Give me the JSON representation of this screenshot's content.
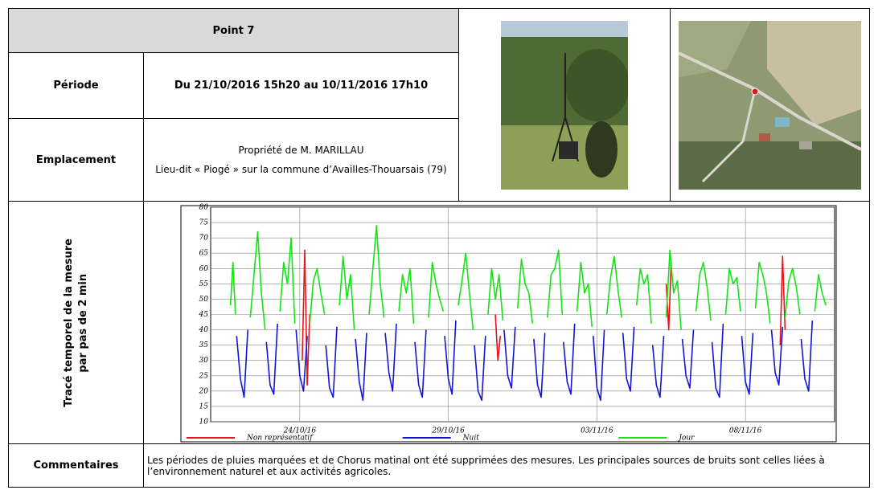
{
  "header": {
    "title": "Point 7"
  },
  "rows": {
    "periode": {
      "label": "Période",
      "value": "Du 21/10/2016 15h20 au 10/11/2016 17h10"
    },
    "emplacement": {
      "label": "Emplacement",
      "lines": [
        "Propriété de M. MARILLAU",
        "Lieu-dit « Piogé » sur la commune d’Availles-Thouarsais (79)"
      ]
    },
    "trace": {
      "label": [
        "Tracé temporel de la mesure",
        "par pas de 2 min"
      ]
    },
    "commentaires": {
      "label": "Commentaires",
      "text": "Les périodes de pluies marquées et de Chorus matinal ont été supprimées des mesures. Les principales sources de bruits sont celles liées à l’environnement naturel et aux activités agricoles."
    }
  },
  "chart_data": {
    "type": "line",
    "xlim": [
      "2016-10-21",
      "2016-11-11"
    ],
    "xticks": [
      {
        "value": "2016-10-24",
        "label": "24/10/16"
      },
      {
        "value": "2016-10-29",
        "label": "29/10/16"
      },
      {
        "value": "2016-11-03",
        "label": "03/11/16"
      },
      {
        "value": "2016-11-08",
        "label": "08/11/16"
      }
    ],
    "ylim": [
      10,
      80
    ],
    "yticks": [
      10,
      15,
      20,
      25,
      30,
      35,
      40,
      45,
      50,
      55,
      60,
      65,
      70,
      75,
      80
    ],
    "grid": true,
    "legend": "bottom",
    "series": [
      {
        "name": "Non représentatif",
        "color": "#e8141c",
        "x": [
          "2016-10-24T02:00",
          "2016-10-24T04:00",
          "2016-10-24T06:00",
          "2016-10-24T08:00",
          "2016-10-24T12:00",
          "2016-10-30T14:00",
          "2016-10-30T16:00",
          "2016-10-30T18:00",
          "2016-10-30T22:00",
          "2016-11-05T08:00",
          "2016-11-05T10:00",
          "2016-11-05T12:00",
          "2016-11-05T16:00",
          "2016-11-09T04:00",
          "2016-11-09T06:00",
          "2016-11-09T08:00"
        ],
        "values": [
          30,
          66,
          22,
          45,
          null,
          45,
          30,
          38,
          null,
          55,
          40,
          62,
          null,
          35,
          64,
          40
        ]
      },
      {
        "name": "Nuit",
        "color": "#1414d4",
        "x": [
          "2016-10-21T21:00",
          "2016-10-22T00:00",
          "2016-10-22T03:00",
          "2016-10-22T06:00",
          "2016-10-22T12:00",
          "2016-10-22T21:00",
          "2016-10-23T00:00",
          "2016-10-23T03:00",
          "2016-10-23T06:00",
          "2016-10-23T12:00",
          "2016-10-23T21:00",
          "2016-10-24T00:00",
          "2016-10-24T03:00",
          "2016-10-24T06:00",
          "2016-10-24T12:00",
          "2016-10-24T21:00",
          "2016-10-25T00:00",
          "2016-10-25T03:00",
          "2016-10-25T06:00",
          "2016-10-25T12:00",
          "2016-10-25T21:00",
          "2016-10-26T00:00",
          "2016-10-26T03:00",
          "2016-10-26T06:00",
          "2016-10-26T12:00",
          "2016-10-26T21:00",
          "2016-10-27T00:00",
          "2016-10-27T03:00",
          "2016-10-27T06:00",
          "2016-10-27T12:00",
          "2016-10-27T21:00",
          "2016-10-28T00:00",
          "2016-10-28T03:00",
          "2016-10-28T06:00",
          "2016-10-28T12:00",
          "2016-10-28T21:00",
          "2016-10-29T00:00",
          "2016-10-29T03:00",
          "2016-10-29T06:00",
          "2016-10-29T12:00",
          "2016-10-29T21:00",
          "2016-10-30T00:00",
          "2016-10-30T03:00",
          "2016-10-30T06:00",
          "2016-10-30T12:00",
          "2016-10-30T21:00",
          "2016-10-31T00:00",
          "2016-10-31T03:00",
          "2016-10-31T06:00",
          "2016-10-31T12:00",
          "2016-10-31T21:00",
          "2016-11-01T00:00",
          "2016-11-01T03:00",
          "2016-11-01T06:00",
          "2016-11-01T12:00",
          "2016-11-01T21:00",
          "2016-11-02T00:00",
          "2016-11-02T03:00",
          "2016-11-02T06:00",
          "2016-11-02T12:00",
          "2016-11-02T21:00",
          "2016-11-03T00:00",
          "2016-11-03T03:00",
          "2016-11-03T06:00",
          "2016-11-03T12:00",
          "2016-11-03T21:00",
          "2016-11-04T00:00",
          "2016-11-04T03:00",
          "2016-11-04T06:00",
          "2016-11-04T12:00",
          "2016-11-04T21:00",
          "2016-11-05T00:00",
          "2016-11-05T03:00",
          "2016-11-05T06:00",
          "2016-11-05T12:00",
          "2016-11-05T21:00",
          "2016-11-06T00:00",
          "2016-11-06T03:00",
          "2016-11-06T06:00",
          "2016-11-06T12:00",
          "2016-11-06T21:00",
          "2016-11-07T00:00",
          "2016-11-07T03:00",
          "2016-11-07T06:00",
          "2016-11-07T12:00",
          "2016-11-07T21:00",
          "2016-11-08T00:00",
          "2016-11-08T03:00",
          "2016-11-08T06:00",
          "2016-11-08T12:00",
          "2016-11-08T21:00",
          "2016-11-09T00:00",
          "2016-11-09T03:00",
          "2016-11-09T06:00",
          "2016-11-09T12:00",
          "2016-11-09T21:00",
          "2016-11-10T00:00",
          "2016-11-10T03:00",
          "2016-11-10T06:00"
        ],
        "values": [
          38,
          24,
          18,
          40,
          null,
          36,
          22,
          19,
          42,
          null,
          40,
          25,
          20,
          38,
          null,
          35,
          21,
          18,
          41,
          null,
          37,
          23,
          17,
          39,
          null,
          39,
          26,
          20,
          42,
          null,
          36,
          22,
          18,
          40,
          null,
          38,
          24,
          19,
          43,
          null,
          35,
          20,
          17,
          38,
          null,
          40,
          25,
          21,
          41,
          null,
          37,
          22,
          18,
          39,
          null,
          36,
          23,
          19,
          42,
          null,
          38,
          21,
          17,
          40,
          null,
          39,
          24,
          20,
          41,
          null,
          35,
          22,
          18,
          38,
          null,
          37,
          25,
          21,
          40,
          null,
          36,
          21,
          18,
          42,
          null,
          38,
          23,
          19,
          39,
          null,
          40,
          26,
          22,
          41,
          null,
          37,
          24,
          20,
          43
        ]
      },
      {
        "name": "Jour",
        "color": "#14e414",
        "x": [
          "2016-10-21T16:00",
          "2016-10-21T18:00",
          "2016-10-21T20:00",
          "2016-10-21T23:00",
          "2016-10-22T08:00",
          "2016-10-22T11:00",
          "2016-10-22T14:00",
          "2016-10-22T17:00",
          "2016-10-22T20:00",
          "2016-10-22T23:00",
          "2016-10-23T08:00",
          "2016-10-23T11:00",
          "2016-10-23T14:00",
          "2016-10-23T17:00",
          "2016-10-23T20:00",
          "2016-10-23T23:00",
          "2016-10-24T08:00",
          "2016-10-24T11:00",
          "2016-10-24T14:00",
          "2016-10-24T17:00",
          "2016-10-24T20:00",
          "2016-10-24T23:00",
          "2016-10-25T08:00",
          "2016-10-25T11:00",
          "2016-10-25T14:00",
          "2016-10-25T17:00",
          "2016-10-25T20:00",
          "2016-10-25T23:00",
          "2016-10-26T08:00",
          "2016-10-26T11:00",
          "2016-10-26T14:00",
          "2016-10-26T17:00",
          "2016-10-26T20:00",
          "2016-10-26T23:00",
          "2016-10-27T08:00",
          "2016-10-27T11:00",
          "2016-10-27T14:00",
          "2016-10-27T17:00",
          "2016-10-27T20:00",
          "2016-10-27T23:00",
          "2016-10-28T08:00",
          "2016-10-28T11:00",
          "2016-10-28T14:00",
          "2016-10-28T17:00",
          "2016-10-28T20:00",
          "2016-10-28T23:00",
          "2016-10-29T08:00",
          "2016-10-29T11:00",
          "2016-10-29T14:00",
          "2016-10-29T17:00",
          "2016-10-29T20:00",
          "2016-10-29T23:00",
          "2016-10-30T08:00",
          "2016-10-30T11:00",
          "2016-10-30T14:00",
          "2016-10-30T17:00",
          "2016-10-30T20:00",
          "2016-10-30T23:00",
          "2016-10-31T08:00",
          "2016-10-31T11:00",
          "2016-10-31T14:00",
          "2016-10-31T17:00",
          "2016-10-31T20:00",
          "2016-10-31T23:00",
          "2016-11-01T08:00",
          "2016-11-01T11:00",
          "2016-11-01T14:00",
          "2016-11-01T17:00",
          "2016-11-01T20:00",
          "2016-11-01T23:00",
          "2016-11-02T08:00",
          "2016-11-02T11:00",
          "2016-11-02T14:00",
          "2016-11-02T17:00",
          "2016-11-02T20:00",
          "2016-11-02T23:00",
          "2016-11-03T08:00",
          "2016-11-03T11:00",
          "2016-11-03T14:00",
          "2016-11-03T17:00",
          "2016-11-03T20:00",
          "2016-11-03T23:00",
          "2016-11-04T08:00",
          "2016-11-04T11:00",
          "2016-11-04T14:00",
          "2016-11-04T17:00",
          "2016-11-04T20:00",
          "2016-11-04T23:00",
          "2016-11-05T08:00",
          "2016-11-05T11:00",
          "2016-11-05T14:00",
          "2016-11-05T17:00",
          "2016-11-05T20:00",
          "2016-11-05T23:00",
          "2016-11-06T08:00",
          "2016-11-06T11:00",
          "2016-11-06T14:00",
          "2016-11-06T17:00",
          "2016-11-06T20:00",
          "2016-11-06T23:00",
          "2016-11-07T08:00",
          "2016-11-07T11:00",
          "2016-11-07T14:00",
          "2016-11-07T17:00",
          "2016-11-07T20:00",
          "2016-11-07T23:00",
          "2016-11-08T08:00",
          "2016-11-08T11:00",
          "2016-11-08T14:00",
          "2016-11-08T17:00",
          "2016-11-08T20:00",
          "2016-11-08T23:00",
          "2016-11-09T08:00",
          "2016-11-09T11:00",
          "2016-11-09T14:00",
          "2016-11-09T17:00",
          "2016-11-09T20:00",
          "2016-11-09T23:00",
          "2016-11-10T08:00",
          "2016-11-10T11:00",
          "2016-11-10T14:00",
          "2016-11-10T17:00"
        ],
        "values": [
          48,
          62,
          45,
          null,
          44,
          58,
          72,
          52,
          40,
          null,
          46,
          62,
          55,
          70,
          42,
          null,
          42,
          56,
          60,
          52,
          45,
          null,
          48,
          64,
          50,
          58,
          40,
          null,
          45,
          60,
          74,
          55,
          44,
          null,
          46,
          58,
          52,
          60,
          42,
          null,
          44,
          62,
          55,
          50,
          46,
          null,
          48,
          56,
          65,
          52,
          40,
          null,
          45,
          60,
          50,
          58,
          43,
          null,
          47,
          63,
          55,
          52,
          42,
          null,
          44,
          58,
          60,
          66,
          45,
          null,
          46,
          62,
          52,
          55,
          41,
          null,
          45,
          57,
          64,
          53,
          44,
          null,
          48,
          60,
          55,
          58,
          42,
          null,
          44,
          66,
          52,
          56,
          40,
          null,
          46,
          58,
          62,
          54,
          43,
          null,
          45,
          60,
          55,
          57,
          46,
          null,
          47,
          62,
          58,
          52,
          42,
          null,
          44,
          56,
          60,
          54,
          45,
          null,
          46,
          58,
          52,
          48
        ]
      }
    ]
  }
}
